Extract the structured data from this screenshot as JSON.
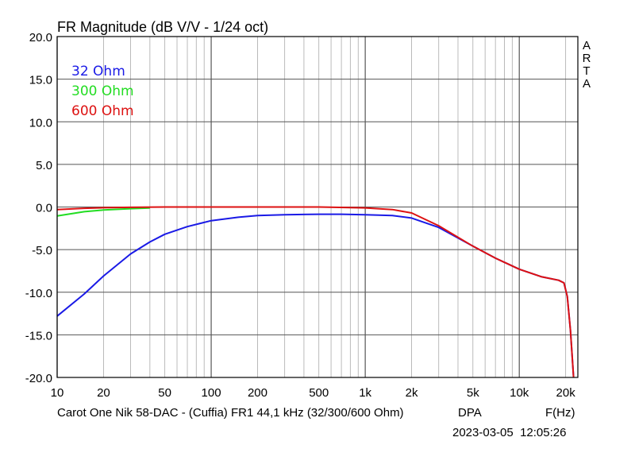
{
  "chart_data": {
    "type": "line",
    "title": "FR Magnitude (dB V/V - 1/24 oct)",
    "xlabel": "F(Hz)",
    "x_scale": "log",
    "xlim": [
      10,
      24000
    ],
    "ylim": [
      -20,
      20
    ],
    "grid": true,
    "legend_position": "top-left",
    "y_ticks": [
      "20.0",
      "15.0",
      "10.0",
      "5.0",
      "0.0",
      "-5.0",
      "-10.0",
      "-15.0",
      "-20.0"
    ],
    "x_ticks": [
      {
        "value": 10,
        "label": "10"
      },
      {
        "value": 20,
        "label": "20"
      },
      {
        "value": 50,
        "label": "50"
      },
      {
        "value": 100,
        "label": "100"
      },
      {
        "value": 200,
        "label": "200"
      },
      {
        "value": 500,
        "label": "500"
      },
      {
        "value": 1000,
        "label": "1k"
      },
      {
        "value": 2000,
        "label": "2k"
      },
      {
        "value": 5000,
        "label": "5k"
      },
      {
        "value": 10000,
        "label": "10k"
      },
      {
        "value": 20000,
        "label": "20k"
      }
    ],
    "watermark": [
      "A",
      "R",
      "T",
      "A"
    ],
    "footer_caption": "Carot One Nik 58-DAC - (Cuffia) FR1 44,1 kHz (32/300/600 Ohm)",
    "footer_dpa": "DPA",
    "footer_timestamp": "2023-03-05  12:05:26",
    "series": [
      {
        "name": "32 Ohm",
        "color": "#1a1ae6",
        "points": [
          [
            10,
            -12.8
          ],
          [
            15,
            -10.2
          ],
          [
            20,
            -8.1
          ],
          [
            30,
            -5.5
          ],
          [
            40,
            -4.1
          ],
          [
            50,
            -3.2
          ],
          [
            70,
            -2.3
          ],
          [
            100,
            -1.6
          ],
          [
            150,
            -1.2
          ],
          [
            200,
            -1.0
          ],
          [
            300,
            -0.9
          ],
          [
            500,
            -0.85
          ],
          [
            700,
            -0.85
          ],
          [
            1000,
            -0.9
          ],
          [
            1500,
            -1.0
          ],
          [
            2000,
            -1.3
          ],
          [
            3000,
            -2.4
          ],
          [
            5000,
            -4.6
          ],
          [
            7000,
            -6.0
          ],
          [
            10000,
            -7.3
          ],
          [
            14000,
            -8.2
          ],
          [
            18000,
            -8.6
          ],
          [
            19500,
            -8.9
          ],
          [
            20500,
            -10.5
          ],
          [
            21500,
            -14.5
          ],
          [
            22500,
            -20.0
          ]
        ]
      },
      {
        "name": "300 Ohm",
        "color": "#22dd22",
        "points": [
          [
            10,
            -1.05
          ],
          [
            15,
            -0.55
          ],
          [
            20,
            -0.35
          ],
          [
            30,
            -0.2
          ],
          [
            40,
            -0.12
          ]
        ]
      },
      {
        "name": "600 Ohm",
        "color": "#dd1111",
        "points": [
          [
            10,
            -0.3
          ],
          [
            15,
            -0.15
          ],
          [
            20,
            -0.08
          ],
          [
            30,
            -0.04
          ],
          [
            50,
            0.0
          ],
          [
            100,
            0.0
          ],
          [
            200,
            0.0
          ],
          [
            500,
            0.0
          ],
          [
            1000,
            -0.1
          ],
          [
            1500,
            -0.3
          ],
          [
            2000,
            -0.7
          ],
          [
            3000,
            -2.2
          ],
          [
            5000,
            -4.6
          ],
          [
            7000,
            -6.0
          ],
          [
            10000,
            -7.3
          ],
          [
            14000,
            -8.2
          ],
          [
            18000,
            -8.6
          ],
          [
            19500,
            -8.9
          ],
          [
            20500,
            -10.5
          ],
          [
            21500,
            -14.5
          ],
          [
            22500,
            -20.0
          ]
        ]
      }
    ]
  }
}
